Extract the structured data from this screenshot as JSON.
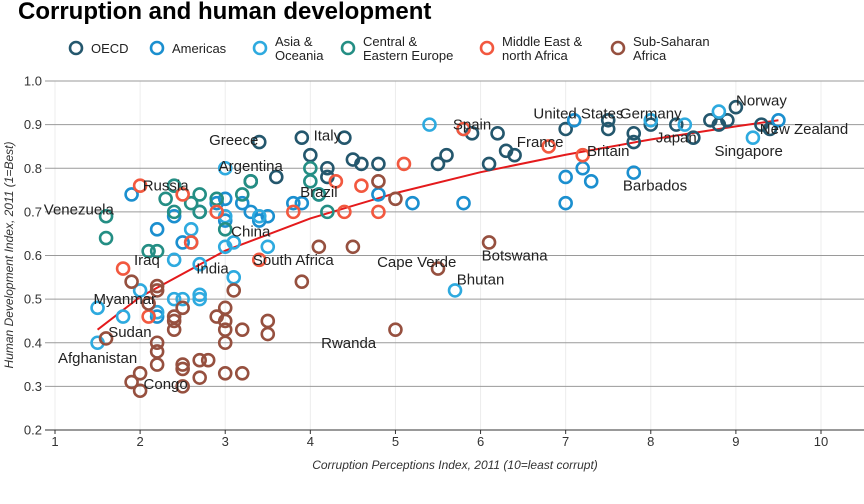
{
  "chart_data": {
    "type": "scatter",
    "title": "Corruption and human development",
    "x_label": "Corruption Perceptions Index, 2011 (10=least corrupt)",
    "y_label": "Human Development Index, 2011 (1=Best)",
    "xlim": [
      1,
      10
    ],
    "ylim": [
      0.2,
      1.0
    ],
    "xticks": [
      1,
      2,
      3,
      4,
      5,
      6,
      7,
      8,
      9,
      10
    ],
    "yticks": [
      {
        "value": 0.2,
        "label": "0.2"
      },
      {
        "value": 0.3,
        "label": "0.3"
      },
      {
        "value": 0.4,
        "label": "0.4"
      },
      {
        "value": 0.5,
        "label": "0.5"
      },
      {
        "value": 0.6,
        "label": "0.6"
      },
      {
        "value": 0.7,
        "label": "0.7"
      },
      {
        "value": 0.8,
        "label": "0.8"
      },
      {
        "value": 0.9,
        "label": "0.9"
      },
      {
        "value": 1.0,
        "label": "1.0"
      }
    ],
    "grid": true,
    "series": [
      {
        "name": "OECD",
        "color": "#24576D",
        "x": [
          3.4,
          3.6,
          3.9,
          4.0,
          4.2,
          4.2,
          4.4,
          4.5,
          4.6,
          4.8,
          5.5,
          5.6,
          5.9,
          6.1,
          6.2,
          6.3,
          6.4,
          7.0,
          7.5,
          7.5,
          7.8,
          7.8,
          8.0,
          8.3,
          8.5,
          8.7,
          8.8,
          8.9,
          9.0,
          9.3,
          9.4,
          3.3
        ],
        "values": [
          0.86,
          0.78,
          0.87,
          0.83,
          0.8,
          0.78,
          0.87,
          0.82,
          0.81,
          0.81,
          0.81,
          0.83,
          0.88,
          0.81,
          0.88,
          0.84,
          0.83,
          0.89,
          0.91,
          0.89,
          0.88,
          0.86,
          0.9,
          0.9,
          0.87,
          0.91,
          0.9,
          0.91,
          0.94,
          0.9,
          0.89,
          0.77
        ]
      },
      {
        "name": "Americas",
        "color": "#1B8FCF",
        "x": [
          1.9,
          2.2,
          2.4,
          2.5,
          2.6,
          2.7,
          2.9,
          3.0,
          3.0,
          3.2,
          3.3,
          3.4,
          3.5,
          3.8,
          3.9,
          4.1,
          4.8,
          5.2,
          5.8,
          7.0,
          7.0,
          7.2,
          7.3,
          7.1,
          7.8,
          2.2,
          9.5
        ],
        "values": [
          0.74,
          0.66,
          0.69,
          0.63,
          0.63,
          0.7,
          0.72,
          0.73,
          0.68,
          0.72,
          0.7,
          0.68,
          0.69,
          0.72,
          0.72,
          0.74,
          0.74,
          0.72,
          0.72,
          0.72,
          0.78,
          0.8,
          0.77,
          0.91,
          0.79,
          0.46,
          0.91
        ]
      },
      {
        "name": "Asia &\nOceania",
        "color": "#2EAADF",
        "x": [
          1.5,
          1.5,
          1.8,
          2.0,
          2.2,
          2.4,
          2.5,
          2.7,
          2.7,
          3.1,
          2.7,
          3.0,
          3.1,
          3.5,
          3.0,
          3.4,
          3.0,
          5.4,
          5.7,
          9.2,
          8.0,
          8.4,
          8.8,
          2.6,
          2.4,
          5.8
        ],
        "values": [
          0.4,
          0.48,
          0.46,
          0.52,
          0.47,
          0.5,
          0.5,
          0.51,
          0.5,
          0.55,
          0.58,
          0.62,
          0.63,
          0.62,
          0.69,
          0.69,
          0.8,
          0.9,
          0.52,
          0.87,
          0.91,
          0.9,
          0.93,
          0.66,
          0.59,
          0.89
        ]
      },
      {
        "name": "Central &\nEastern Europe",
        "color": "#248E84",
        "x": [
          1.6,
          1.6,
          2.1,
          2.3,
          2.4,
          2.4,
          2.6,
          2.7,
          2.9,
          3.0,
          3.2,
          3.3,
          4.0,
          4.0,
          4.1,
          4.2,
          2.2,
          2.7
        ],
        "values": [
          0.69,
          0.64,
          0.61,
          0.73,
          0.76,
          0.7,
          0.72,
          0.74,
          0.73,
          0.66,
          0.74,
          0.77,
          0.8,
          0.77,
          0.74,
          0.7,
          0.61,
          0.7
        ]
      },
      {
        "name": "Middle East &\nnorth Africa",
        "color": "#F2583F",
        "x": [
          1.8,
          2.0,
          2.1,
          2.5,
          2.6,
          2.9,
          3.4,
          3.8,
          4.3,
          4.6,
          4.8,
          4.4,
          5.1,
          5.8,
          7.2,
          6.8
        ],
        "values": [
          0.57,
          0.76,
          0.46,
          0.74,
          0.63,
          0.7,
          0.59,
          0.7,
          0.77,
          0.76,
          0.7,
          0.7,
          0.81,
          0.89,
          0.83,
          0.85
        ]
      },
      {
        "name": "Sub-Saharan\nAfrica",
        "color": "#96503F",
        "x": [
          1.6,
          1.9,
          2.0,
          2.0,
          2.1,
          2.2,
          2.2,
          2.2,
          2.2,
          2.2,
          2.4,
          2.4,
          2.4,
          2.5,
          2.5,
          2.5,
          2.5,
          2.7,
          2.7,
          2.8,
          2.9,
          3.0,
          3.0,
          3.0,
          3.0,
          3.0,
          3.2,
          3.2,
          3.1,
          3.5,
          3.5,
          3.9,
          4.1,
          4.5,
          4.8,
          5.0,
          5.5,
          6.1,
          5.0,
          1.9
        ],
        "values": [
          0.41,
          0.31,
          0.29,
          0.33,
          0.49,
          0.52,
          0.4,
          0.38,
          0.35,
          0.53,
          0.45,
          0.46,
          0.43,
          0.48,
          0.35,
          0.34,
          0.3,
          0.36,
          0.32,
          0.36,
          0.46,
          0.48,
          0.45,
          0.43,
          0.4,
          0.33,
          0.43,
          0.33,
          0.52,
          0.45,
          0.42,
          0.54,
          0.62,
          0.62,
          0.77,
          0.73,
          0.57,
          0.63,
          0.43,
          0.54
        ]
      }
    ],
    "trend": {
      "color": "#E41A1C",
      "x": [
        1.5,
        2,
        3,
        4,
        5,
        6,
        7,
        8,
        9,
        9.5
      ],
      "values": [
        0.43,
        0.505,
        0.611,
        0.685,
        0.743,
        0.791,
        0.831,
        0.866,
        0.896,
        0.91
      ]
    },
    "annotations": [
      {
        "text": "Norway",
        "x": 9.3,
        "y": 0.955
      },
      {
        "text": "Singapore",
        "x": 9.15,
        "y": 0.84
      },
      {
        "text": "New Zealand",
        "x": 9.8,
        "y": 0.89
      },
      {
        "text": "Japan",
        "x": 8.3,
        "y": 0.87
      },
      {
        "text": "Germany",
        "x": 8.0,
        "y": 0.925
      },
      {
        "text": "United States",
        "x": 7.15,
        "y": 0.925
      },
      {
        "text": "Britain",
        "x": 7.5,
        "y": 0.84
      },
      {
        "text": "Barbados",
        "x": 8.05,
        "y": 0.76
      },
      {
        "text": "France",
        "x": 6.7,
        "y": 0.86
      },
      {
        "text": "Spain",
        "x": 5.9,
        "y": 0.9
      },
      {
        "text": "Botswana",
        "x": 6.4,
        "y": 0.6
      },
      {
        "text": "Bhutan",
        "x": 6.0,
        "y": 0.545
      },
      {
        "text": "Cape Verde",
        "x": 5.25,
        "y": 0.585
      },
      {
        "text": "Rwanda",
        "x": 4.45,
        "y": 0.4
      },
      {
        "text": "South Africa",
        "x": 3.8,
        "y": 0.59
      },
      {
        "text": "India",
        "x": 2.85,
        "y": 0.57
      },
      {
        "text": "China",
        "x": 3.3,
        "y": 0.655
      },
      {
        "text": "Iraq",
        "x": 2.08,
        "y": 0.59
      },
      {
        "text": "Brazil",
        "x": 4.1,
        "y": 0.745
      },
      {
        "text": "Argentina",
        "x": 3.3,
        "y": 0.805
      },
      {
        "text": "Greece",
        "x": 3.1,
        "y": 0.865
      },
      {
        "text": "Italy",
        "x": 4.2,
        "y": 0.875
      },
      {
        "text": "Russia",
        "x": 2.3,
        "y": 0.76
      },
      {
        "text": "Venezuela",
        "x": 1.28,
        "y": 0.705
      },
      {
        "text": "Myanmar",
        "x": 1.82,
        "y": 0.5
      },
      {
        "text": "Sudan",
        "x": 1.88,
        "y": 0.425
      },
      {
        "text": "Afghanistan",
        "x": 1.5,
        "y": 0.365
      },
      {
        "text": "Congo",
        "x": 2.3,
        "y": 0.305
      }
    ]
  }
}
